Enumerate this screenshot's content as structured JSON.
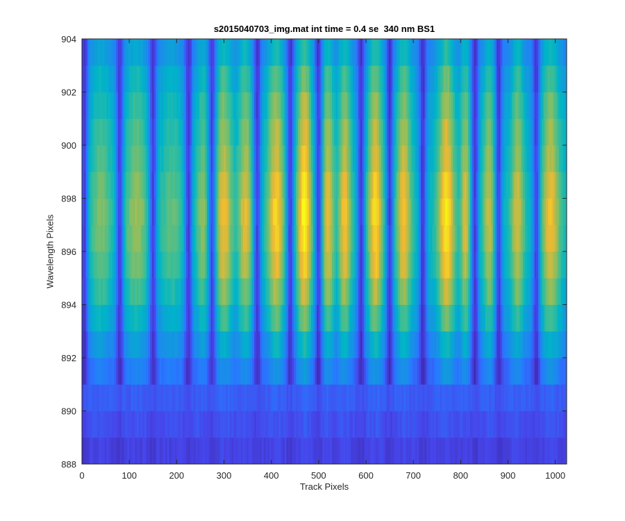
{
  "chart_data": {
    "type": "heatmap",
    "title": "s2015040703_img.mat int time = 0.4 se  340 nm BS1",
    "xlabel": "Track Pixels",
    "ylabel": "Wavelength Pixels",
    "xlim": [
      0,
      1024
    ],
    "ylim": [
      888,
      904
    ],
    "xticks": [
      0,
      100,
      200,
      300,
      400,
      500,
      600,
      700,
      800,
      900,
      1000
    ],
    "yticks": [
      888,
      890,
      892,
      894,
      896,
      898,
      900,
      902,
      904
    ],
    "colormap": "parula",
    "grid": false,
    "legend": "none",
    "rows": [
      888,
      889,
      890,
      891,
      892,
      893,
      894,
      895,
      896,
      897,
      898,
      899,
      900,
      901,
      902,
      903
    ],
    "row_profile": [
      0.07,
      0.15,
      0.22,
      0.4,
      0.56,
      0.72,
      0.84,
      0.93,
      0.98,
      1.0,
      0.96,
      0.9,
      0.86,
      0.8,
      0.72,
      0.6
    ],
    "bright_bands": [
      {
        "center": 40,
        "width": 50,
        "peak": 0.72
      },
      {
        "center": 115,
        "width": 55,
        "peak": 0.76
      },
      {
        "center": 190,
        "width": 50,
        "peak": 0.68
      },
      {
        "center": 255,
        "width": 30,
        "peak": 0.74
      },
      {
        "center": 300,
        "width": 40,
        "peak": 0.88
      },
      {
        "center": 345,
        "width": 35,
        "peak": 0.86
      },
      {
        "center": 410,
        "width": 40,
        "peak": 0.93
      },
      {
        "center": 470,
        "width": 35,
        "peak": 1.0
      },
      {
        "center": 520,
        "width": 30,
        "peak": 0.88
      },
      {
        "center": 555,
        "width": 30,
        "peak": 0.9
      },
      {
        "center": 620,
        "width": 35,
        "peak": 0.95
      },
      {
        "center": 680,
        "width": 35,
        "peak": 0.9
      },
      {
        "center": 770,
        "width": 40,
        "peak": 0.97
      },
      {
        "center": 810,
        "width": 25,
        "peak": 0.85
      },
      {
        "center": 860,
        "width": 30,
        "peak": 0.82
      },
      {
        "center": 920,
        "width": 30,
        "peak": 0.84
      },
      {
        "center": 990,
        "width": 45,
        "peak": 0.88
      }
    ],
    "dark_gaps": [
      5,
      80,
      150,
      225,
      275,
      370,
      440,
      500,
      590,
      650,
      720,
      830,
      880,
      960
    ]
  }
}
